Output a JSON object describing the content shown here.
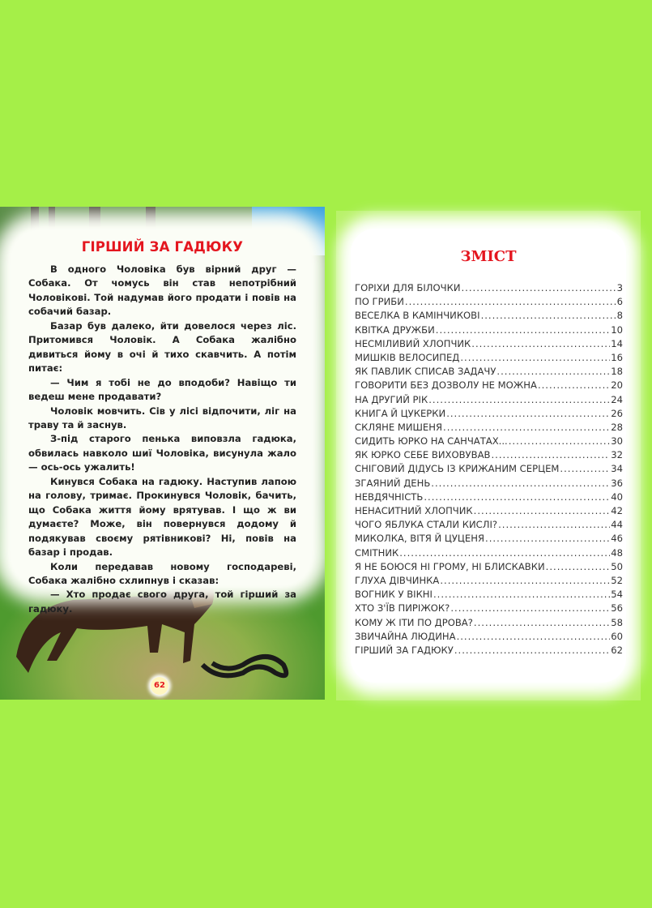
{
  "left_page": {
    "title": "ГІРШИЙ ЗА ГАДЮКУ",
    "paragraphs": [
      "В одного Чоловіка був вірний друг — Собака. От чомусь він став непотрібний Чоловікові. Той надумав його продати і повів на собачий базар.",
      "Базар був далеко, йти довелося через ліс. Притомився Чоловік. А Собака жалібно дивиться йому в очі й тихо скавчить. А потім питає:",
      "— Чим я тобі не до вподоби? Навіщо ти ведеш мене продавати?",
      "Чоловік мовчить. Сів у лісі відпочити, ліг на траву та й заснув.",
      "З-під старого пенька виповзла гадюка, обвилась навколо шиї Чоловіка, висунула жало — ось-ось ужалить!",
      "Кинувся Собака на гадюку. Наступив лапою на голову, тримає. Прокинувся Чоловік, бачить, що Собака життя йому врятував. І що ж ви думаєте? Може, він повернувся додому й подякував своєму рятівникові? Ні, повів на базар і продав.",
      "Коли передавав новому господареві, Собака жалібно схлипнув і сказав:",
      "— Хто продає свого друга, той гірший за гадюку."
    ],
    "page_number": "62"
  },
  "right_page": {
    "title": "ЗМІСТ",
    "entries": [
      {
        "title": "ГОРІХИ ДЛЯ БІЛОЧКИ",
        "page": "3"
      },
      {
        "title": "ПО ГРИБИ",
        "page": "6"
      },
      {
        "title": "ВЕСЕЛКА В КАМІНЧИКОВІ",
        "page": "8"
      },
      {
        "title": "КВІТКА ДРУЖБИ",
        "page": "10"
      },
      {
        "title": "НЕСМІЛИВИЙ ХЛОПЧИК",
        "page": "14"
      },
      {
        "title": "МИШКІВ ВЕЛОСИПЕД",
        "page": "16"
      },
      {
        "title": "ЯК ПАВЛИК СПИСАВ ЗАДАЧУ",
        "page": "18"
      },
      {
        "title": "ГОВОРИТИ БЕЗ ДОЗВОЛУ НЕ МОЖНА",
        "page": "20"
      },
      {
        "title": "НА ДРУГИЙ РІК",
        "page": "24"
      },
      {
        "title": "КНИГА Й ЦУКЕРКИ",
        "page": "26"
      },
      {
        "title": "СКЛЯНЕ МИШЕНЯ",
        "page": "28"
      },
      {
        "title": "СИДИТЬ ЮРКО НА САНЧАТАХ...",
        "page": "30"
      },
      {
        "title": "ЯК ЮРКО СЕБЕ ВИХОВУВАВ",
        "page": "32"
      },
      {
        "title": "СНІГОВИЙ ДІДУСЬ ІЗ КРИЖАНИМ СЕРЦЕМ",
        "page": "34"
      },
      {
        "title": "ЗГАЯНИЙ ДЕНЬ",
        "page": "36"
      },
      {
        "title": "НЕВДЯЧНІСТЬ",
        "page": "40"
      },
      {
        "title": "НЕНАСИТНИЙ ХЛОПЧИК",
        "page": "42"
      },
      {
        "title": "ЧОГО ЯБЛУКА СТАЛИ КИСЛІ?",
        "page": "44"
      },
      {
        "title": "МИКОЛКА, ВІТЯ Й ЦУЦЕНЯ",
        "page": "46"
      },
      {
        "title": "СМІТНИК",
        "page": "48"
      },
      {
        "title": "Я НЕ БОЮСЯ НІ ГРОМУ, НІ БЛИСКАВКИ",
        "page": "50"
      },
      {
        "title": "ГЛУХА ДІВЧИНКА",
        "page": "52"
      },
      {
        "title": "ВОГНИК У ВІКНІ",
        "page": "54"
      },
      {
        "title": "ХТО З'ЇВ ПИРІЖОК?",
        "page": "56"
      },
      {
        "title": "КОМУ Ж ІТИ ПО ДРОВА?",
        "page": "58"
      },
      {
        "title": "ЗВИЧАЙНА ЛЮДИНА",
        "page": "60"
      },
      {
        "title": "ГІРШИЙ ЗА ГАДЮКУ",
        "page": "62"
      }
    ]
  },
  "colors": {
    "background": "#a5ef48",
    "title_red": "#e4161f"
  }
}
